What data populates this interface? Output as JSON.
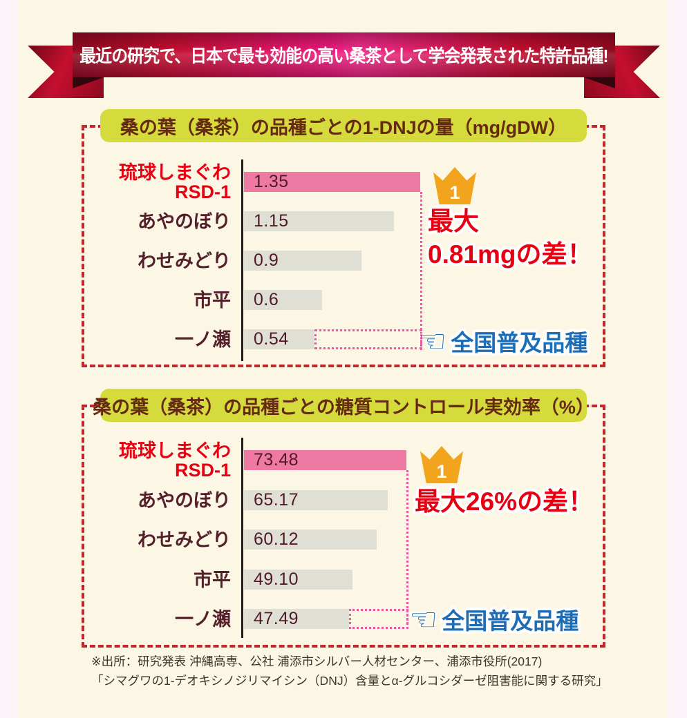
{
  "colors": {
    "bg-outer": "#FCF4F8",
    "bg-cream": "#FBF7E4",
    "dash-red": "#C1272D",
    "dot-pink": "#E65C9C",
    "header-green": "#D5DB3C",
    "header-text": "#652A12",
    "bar-pink": "#EE7AA3",
    "bar-gray": "#E0DFD6",
    "label-maroon": "#53202C",
    "accent-red": "#E60012",
    "accent-blue": "#1C6DB5",
    "crown-orange": "#F2A41C",
    "source-text": "#3E352B"
  },
  "banner": {
    "text": "最近の研究で、日本で最も効能の高い桑茶として学会発表された特許品種!"
  },
  "chart_data": [
    {
      "type": "bar",
      "orientation": "horizontal",
      "title": "桑の葉（桑茶）の品種ごとの1-DNJの量（mg/gDW）",
      "categories": [
        "琉球しまぐわ\nRSD-1",
        "あやのぼり",
        "わせみどり",
        "市平",
        "一ノ瀬"
      ],
      "values": [
        1.35,
        1.15,
        0.9,
        0.6,
        0.54
      ],
      "value_labels": [
        "1.35",
        "1.15",
        "0.9",
        "0.6",
        "0.54"
      ],
      "xlim": [
        0,
        1.35
      ],
      "highlight_index": 0,
      "gap_row": 4,
      "grid": false,
      "legend": false,
      "rank_badge": "1",
      "diff_text_line1": "最大",
      "diff_text_line2": "0.81mgの差！",
      "annotation": "全国普及品種"
    },
    {
      "type": "bar",
      "orientation": "horizontal",
      "title": "桑の葉（桑茶）の品種ごとの糖質コントロール実効率（%）",
      "categories": [
        "琉球しまぐわ\nRSD-1",
        "あやのぼり",
        "わせみどり",
        "市平",
        "一ノ瀬"
      ],
      "values": [
        73.48,
        65.17,
        60.12,
        49.1,
        47.49
      ],
      "value_labels": [
        "73.48",
        "65.17",
        "60.12",
        "49.10",
        "47.49"
      ],
      "xlim": [
        0,
        73.48
      ],
      "highlight_index": 0,
      "gap_row": 4,
      "grid": false,
      "legend": false,
      "rank_badge": "1",
      "diff_text": "最大26%の差！",
      "annotation": "全国普及品種"
    }
  ],
  "source": {
    "line1": "※出所：研究発表 沖縄高専、公社 浦添市シルバー人材センター、浦添市役所(2017)",
    "line2": "「シマグワの1-デオキシノジリマイシン（DNJ）含量とα-グルコシダーゼ阻害能に関する研究」"
  }
}
